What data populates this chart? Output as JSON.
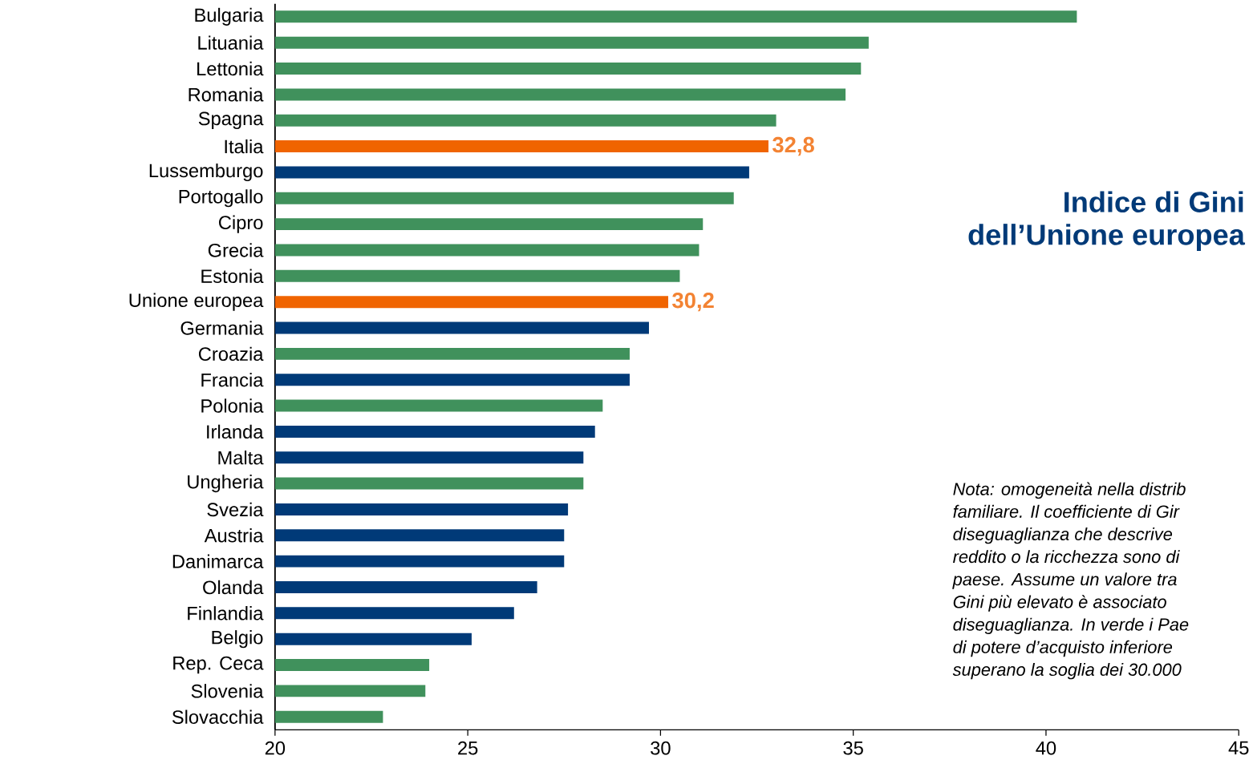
{
  "chart_data": {
    "type": "bar",
    "orientation": "horizontal",
    "title": "Indice di Gini",
    "subtitle": "dell’Unione europea",
    "categories": [
      "Bulgaria",
      "Lituania",
      "Lettonia",
      "Romania",
      "Spagna",
      "Italia",
      "Lussemburgo",
      "Portogallo",
      "Cipro",
      "Grecia",
      "Estonia",
      "Unione europea",
      "Germania",
      "Croazia",
      "Francia",
      "Polonia",
      "Irlanda",
      "Malta",
      "Ungheria",
      "Svezia",
      "Austria",
      "Danimarca",
      "Olanda",
      "Finlandia",
      "Belgio",
      "Rep. Ceca",
      "Slovenia",
      "Slovacchia"
    ],
    "values": [
      40.8,
      35.4,
      35.2,
      34.8,
      33.0,
      32.8,
      32.3,
      31.9,
      31.1,
      31.0,
      30.5,
      30.2,
      29.7,
      29.2,
      29.2,
      28.5,
      28.3,
      28.0,
      28.0,
      27.6,
      27.5,
      27.5,
      26.8,
      26.2,
      25.1,
      24.0,
      23.9,
      22.8
    ],
    "colors": [
      "#40915c",
      "#40915c",
      "#40915c",
      "#40915c",
      "#40915c",
      "#f06400",
      "#003a78",
      "#40915c",
      "#40915c",
      "#40915c",
      "#40915c",
      "#f06400",
      "#003a78",
      "#40915c",
      "#003a78",
      "#40915c",
      "#003a78",
      "#003a78",
      "#40915c",
      "#003a78",
      "#003a78",
      "#003a78",
      "#003a78",
      "#003a78",
      "#003a78",
      "#40915c",
      "#40915c",
      "#40915c"
    ],
    "value_labels": [
      null,
      null,
      null,
      null,
      null,
      "32,8",
      null,
      null,
      null,
      null,
      null,
      "30,2",
      null,
      null,
      null,
      null,
      null,
      null,
      null,
      null,
      null,
      null,
      null,
      null,
      null,
      null,
      null,
      null
    ],
    "xlim": [
      20,
      45
    ],
    "xticks": [
      20,
      25,
      30,
      35,
      40,
      45
    ],
    "annotations": [
      "Nota: omogeneità nella distrib",
      "familiare. Il coefficiente di Gir",
      "diseguaglianza che descrive",
      "reddito o la ricchezza sono di",
      "paese. Assume un valore tra",
      "Gini più elevato è associato",
      "diseguaglianza. In verde i Pae",
      "di potere d’acquisto inferiore",
      "superano la soglia dei 30.000"
    ]
  }
}
